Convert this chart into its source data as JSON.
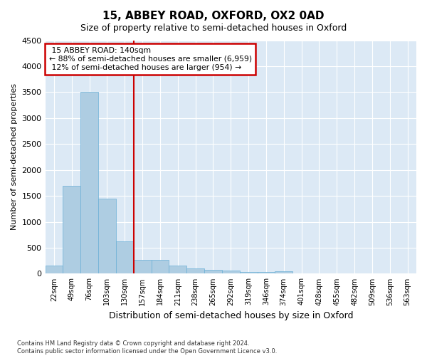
{
  "title": "15, ABBEY ROAD, OXFORD, OX2 0AD",
  "subtitle": "Size of property relative to semi-detached houses in Oxford",
  "xlabel": "Distribution of semi-detached houses by size in Oxford",
  "ylabel": "Number of semi-detached properties",
  "property_label": "15 ABBEY ROAD: 140sqm",
  "pct_smaller": 88,
  "pct_larger": 12,
  "n_smaller": 6959,
  "n_larger": 954,
  "bin_labels": [
    "22sqm",
    "49sqm",
    "76sqm",
    "103sqm",
    "130sqm",
    "157sqm",
    "184sqm",
    "211sqm",
    "238sqm",
    "265sqm",
    "292sqm",
    "319sqm",
    "346sqm",
    "374sqm",
    "401sqm",
    "428sqm",
    "455sqm",
    "482sqm",
    "509sqm",
    "536sqm",
    "563sqm"
  ],
  "bar_values": [
    150,
    1700,
    3500,
    1450,
    630,
    270,
    270,
    160,
    100,
    75,
    55,
    40,
    30,
    50,
    0,
    0,
    0,
    0,
    0,
    0,
    0
  ],
  "bar_color": "#aecde2",
  "bar_edge_color": "#6aafd6",
  "vline_color": "#cc0000",
  "annotation_box_color": "#cc0000",
  "background_color": "#dce9f5",
  "ylim": [
    0,
    4500
  ],
  "yticks": [
    0,
    500,
    1000,
    1500,
    2000,
    2500,
    3000,
    3500,
    4000,
    4500
  ],
  "footer_text": "Contains HM Land Registry data © Crown copyright and database right 2024.\nContains public sector information licensed under the Open Government Licence v3.0.",
  "figsize": [
    6.0,
    5.0
  ],
  "dpi": 100
}
